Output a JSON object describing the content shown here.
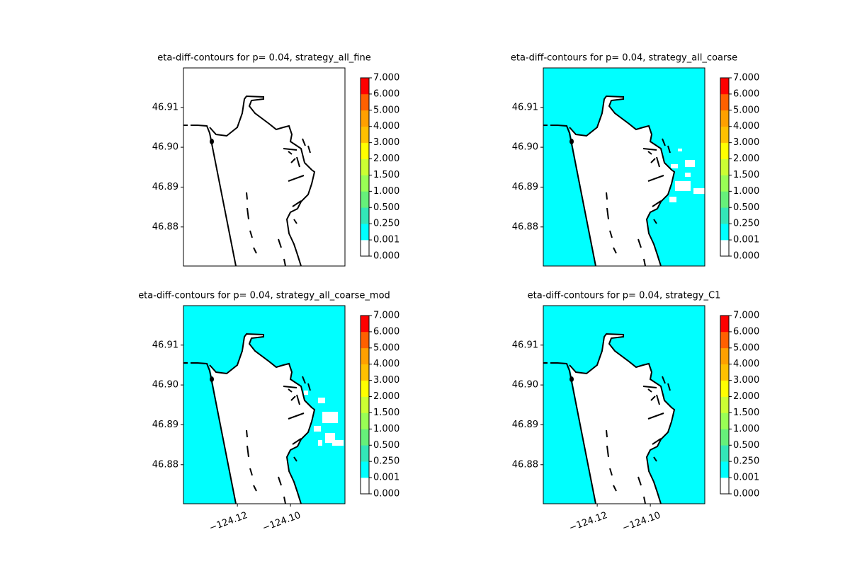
{
  "chart_data": [
    {
      "type": "contour",
      "title": "eta-diff-contours for p= 0.04, strategy_all_fine",
      "xlim": [
        -124.1403,
        -124.0795
      ],
      "ylim": [
        46.8702,
        46.9199
      ],
      "yticks": [
        {
          "value": 46.88,
          "label": "46.88"
        },
        {
          "value": 46.89,
          "label": "46.89"
        },
        {
          "value": 46.9,
          "label": "46.90"
        },
        {
          "value": 46.91,
          "label": "46.91"
        }
      ],
      "levels": [
        {
          "value": 0,
          "label": "0.000"
        },
        {
          "value": 0.001,
          "label": "0.001"
        },
        {
          "value": 0.25,
          "label": "0.250"
        },
        {
          "value": 0.5,
          "label": "0.500"
        },
        {
          "value": 1,
          "label": "1.000"
        },
        {
          "value": 1.5,
          "label": "1.500"
        },
        {
          "value": 2,
          "label": "2.000"
        },
        {
          "value": 3,
          "label": "3.000"
        },
        {
          "value": 4,
          "label": "4.000"
        },
        {
          "value": 5,
          "label": "5.000"
        },
        {
          "value": 6,
          "label": "6.000"
        },
        {
          "value": 7,
          "label": "7.000"
        }
      ],
      "colors": [
        "#ffffff",
        "#00ffff",
        "#33e6b8",
        "#66f07a",
        "#99ff55",
        "#ccff33",
        "#ffff00",
        "#ffc000",
        "#ffa000",
        "#ff6000",
        "#ff0000"
      ]
    },
    {
      "type": "contour",
      "title": "eta-diff-contours for p= 0.04, strategy_all_coarse",
      "xlim": [
        -124.1403,
        -124.0795
      ],
      "ylim": [
        46.8702,
        46.9199
      ],
      "yticks": [
        {
          "value": 46.88,
          "label": "46.88"
        },
        {
          "value": 46.89,
          "label": "46.89"
        },
        {
          "value": 46.9,
          "label": "46.90"
        },
        {
          "value": 46.91,
          "label": "46.91"
        }
      ],
      "levels": [
        {
          "value": 0,
          "label": "0.000"
        },
        {
          "value": 0.001,
          "label": "0.001"
        },
        {
          "value": 0.25,
          "label": "0.250"
        },
        {
          "value": 0.5,
          "label": "0.500"
        },
        {
          "value": 1,
          "label": "1.000"
        },
        {
          "value": 1.5,
          "label": "1.500"
        },
        {
          "value": 2,
          "label": "2.000"
        },
        {
          "value": 3,
          "label": "3.000"
        },
        {
          "value": 4,
          "label": "4.000"
        },
        {
          "value": 5,
          "label": "5.000"
        },
        {
          "value": 6,
          "label": "6.000"
        },
        {
          "value": 7,
          "label": "7.000"
        }
      ],
      "colors": [
        "#ffffff",
        "#00ffff",
        "#33e6b8",
        "#66f07a",
        "#99ff55",
        "#ccff33",
        "#ffff00",
        "#ffc000",
        "#ffa000",
        "#ff6000",
        "#ff0000"
      ],
      "fill_color": "#00ffff"
    },
    {
      "type": "contour",
      "title": "eta-diff-contours for p= 0.04, strategy_all_coarse_mod",
      "xlim": [
        -124.1403,
        -124.0795
      ],
      "ylim": [
        46.8702,
        46.9199
      ],
      "xticks": [
        {
          "value": -124.12,
          "label": "−124.12"
        },
        {
          "value": -124.1,
          "label": "−124.10"
        }
      ],
      "yticks": [
        {
          "value": 46.88,
          "label": "46.88"
        },
        {
          "value": 46.89,
          "label": "46.89"
        },
        {
          "value": 46.9,
          "label": "46.90"
        },
        {
          "value": 46.91,
          "label": "46.91"
        }
      ],
      "levels": [
        {
          "value": 0,
          "label": "0.000"
        },
        {
          "value": 0.001,
          "label": "0.001"
        },
        {
          "value": 0.25,
          "label": "0.250"
        },
        {
          "value": 0.5,
          "label": "0.500"
        },
        {
          "value": 1,
          "label": "1.000"
        },
        {
          "value": 1.5,
          "label": "1.500"
        },
        {
          "value": 2,
          "label": "2.000"
        },
        {
          "value": 3,
          "label": "3.000"
        },
        {
          "value": 4,
          "label": "4.000"
        },
        {
          "value": 5,
          "label": "5.000"
        },
        {
          "value": 6,
          "label": "6.000"
        },
        {
          "value": 7,
          "label": "7.000"
        }
      ],
      "colors": [
        "#ffffff",
        "#00ffff",
        "#33e6b8",
        "#66f07a",
        "#99ff55",
        "#ccff33",
        "#ffff00",
        "#ffc000",
        "#ffa000",
        "#ff6000",
        "#ff0000"
      ],
      "fill_color": "#00ffff"
    },
    {
      "type": "contour",
      "title": "eta-diff-contours for p= 0.04, strategy_C1",
      "xlim": [
        -124.1403,
        -124.0795
      ],
      "ylim": [
        46.8702,
        46.9199
      ],
      "xticks": [
        {
          "value": -124.12,
          "label": "−124.12"
        },
        {
          "value": -124.1,
          "label": "−124.10"
        }
      ],
      "yticks": [
        {
          "value": 46.88,
          "label": "46.88"
        },
        {
          "value": 46.89,
          "label": "46.89"
        },
        {
          "value": 46.9,
          "label": "46.90"
        },
        {
          "value": 46.91,
          "label": "46.91"
        }
      ],
      "levels": [
        {
          "value": 0,
          "label": "0.000"
        },
        {
          "value": 0.001,
          "label": "0.001"
        },
        {
          "value": 0.25,
          "label": "0.250"
        },
        {
          "value": 0.5,
          "label": "0.500"
        },
        {
          "value": 1,
          "label": "1.000"
        },
        {
          "value": 1.5,
          "label": "1.500"
        },
        {
          "value": 2,
          "label": "2.000"
        },
        {
          "value": 3,
          "label": "3.000"
        },
        {
          "value": 4,
          "label": "4.000"
        },
        {
          "value": 5,
          "label": "5.000"
        },
        {
          "value": 6,
          "label": "6.000"
        },
        {
          "value": 7,
          "label": "7.000"
        }
      ],
      "colors": [
        "#ffffff",
        "#00ffff",
        "#33e6b8",
        "#66f07a",
        "#99ff55",
        "#ccff33",
        "#ffff00",
        "#ffc000",
        "#ffa000",
        "#ff6000",
        "#ff0000"
      ],
      "fill_color": "#00ffff"
    }
  ]
}
